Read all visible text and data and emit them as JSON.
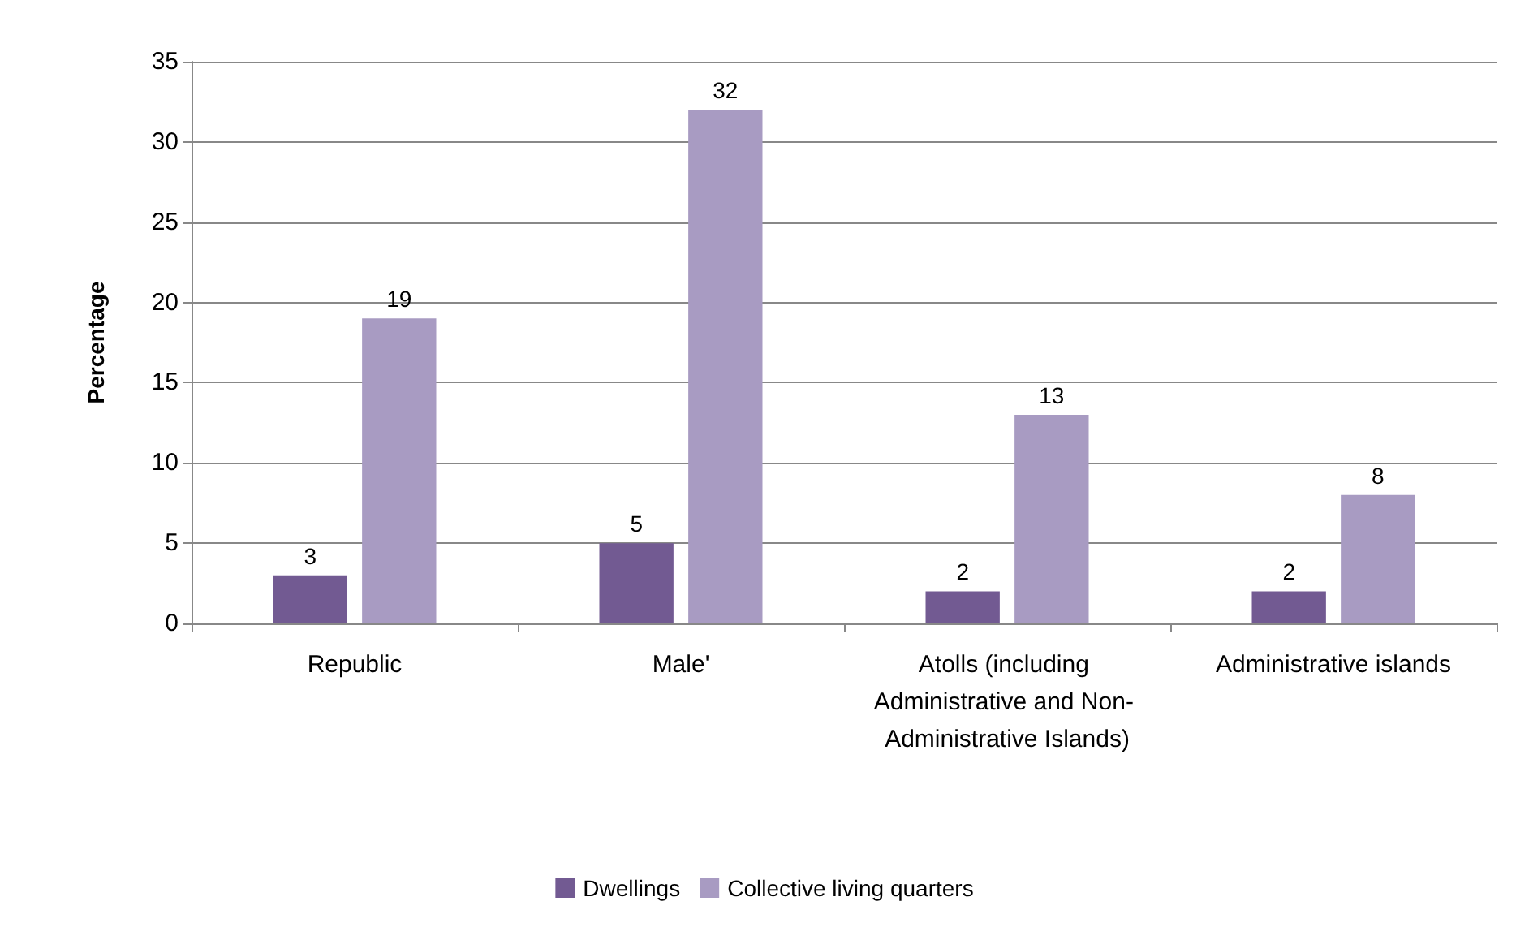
{
  "chart_data": {
    "type": "bar",
    "ylabel": "Percentage",
    "categories": [
      "Republic",
      "Male'",
      "Atolls (including Administrative and Non- Administrative Islands)",
      "Administrative islands"
    ],
    "series": [
      {
        "name": "Dwellings",
        "color": "#725a92",
        "values": [
          3,
          5,
          2,
          2
        ]
      },
      {
        "name": "Collective living quarters",
        "color": "#a89bc2",
        "values": [
          19,
          32,
          13,
          8
        ]
      }
    ],
    "ylim": [
      0,
      35
    ],
    "yticks": [
      0,
      5,
      10,
      15,
      20,
      25,
      30,
      35
    ],
    "grid": "y",
    "legend": "bottom",
    "data_labels": true
  }
}
